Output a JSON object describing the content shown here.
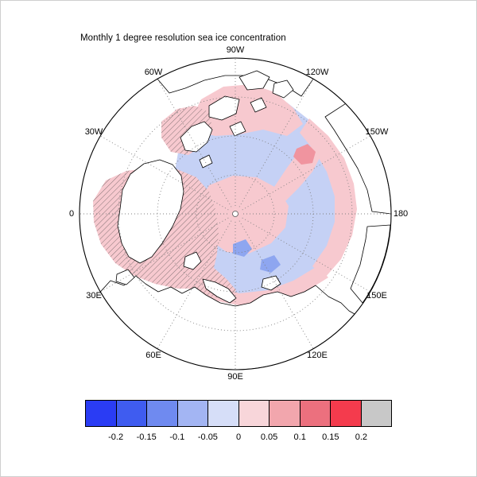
{
  "chart_data": {
    "type": "heatmap",
    "title": "Monthly 1 degree resolution sea ice concentration",
    "projection": "north polar stereographic",
    "longitude_labels": [
      "90W",
      "60W",
      "120W",
      "30W",
      "150W",
      "0",
      "180",
      "30E",
      "150E",
      "60E",
      "120E",
      "90E"
    ],
    "colorbar": {
      "orientation": "horizontal",
      "tick_labels": [
        "-0.2",
        "-0.15",
        "-0.1",
        "-0.05",
        "0",
        "0.05",
        "0.1",
        "0.15",
        "0.2"
      ],
      "colors": [
        "#2a3cf4",
        "#3f5cf0",
        "#6f8af0",
        "#a3b5f3",
        "#d6def8",
        "#f8d6da",
        "#f2a6ad",
        "#ec707e",
        "#f43b4d",
        "#c8c8c8"
      ]
    },
    "map_colors": {
      "weak_negative": "#c5d1f5",
      "weak_positive": "#f7c9cf",
      "moderate_negative": "#8ea6f0",
      "moderate_positive": "#f0949f",
      "land": "#ffffff",
      "coastline": "#000000",
      "hatch_line": "#3a3a3a",
      "grid": "#808080"
    },
    "regions": [
      {
        "area": "central Arctic basin",
        "level": "-0.05 to 0",
        "hatched": false
      },
      {
        "area": "patch around the pole extending toward Siberia",
        "level": "0 to 0.05",
        "hatched": false
      },
      {
        "area": "Beaufort / Chukchi rim band (150W-180 sector)",
        "level": "0 to 0.05",
        "hatched": false
      },
      {
        "area": "spot near 120W sector",
        "level": "0.05 to 0.1",
        "hatched": false
      },
      {
        "area": "Greenland / Norwegian / Barents seas",
        "level": "0 to 0.05",
        "hatched": true
      },
      {
        "area": "Baffin Bay (60W sector)",
        "level": "0 to 0.05",
        "hatched": true
      },
      {
        "area": "Laptev / Kara coastal spots",
        "level": "-0.1 to -0.05",
        "hatched": false
      },
      {
        "area": "Siberian coastal fringe",
        "level": "0 to 0.05",
        "hatched": false
      }
    ]
  }
}
